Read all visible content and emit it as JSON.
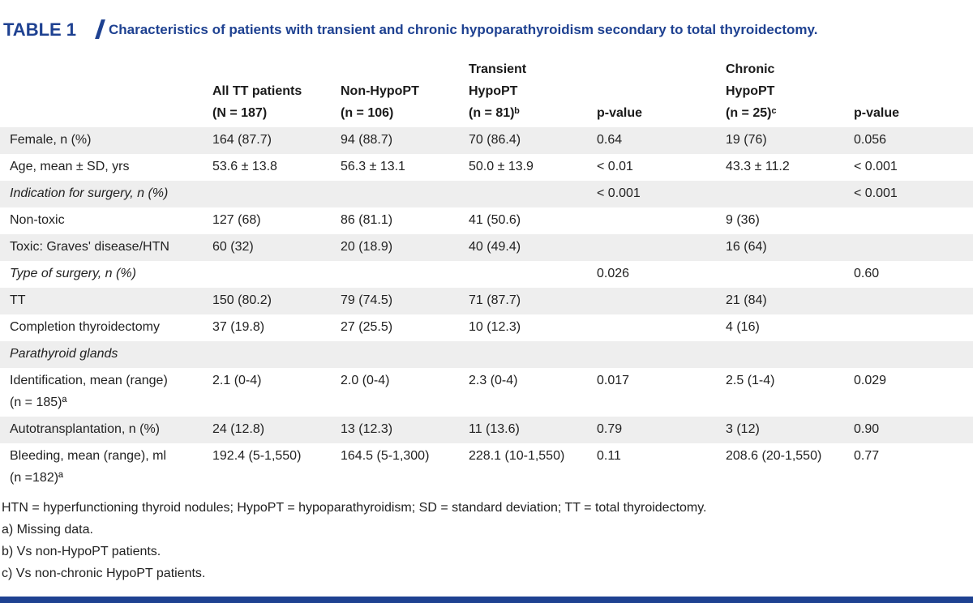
{
  "title": {
    "label": "TABLE 1",
    "text": "Characteristics of patients with transient and chronic hypoparathyroidism secondary to total thyroidectomy."
  },
  "table": {
    "columns": [
      [
        "All TT patients",
        "(N = 187)"
      ],
      [
        "Non-HypoPT",
        "(n = 106)"
      ],
      [
        "Transient",
        "HypoPT",
        "(n = 81)ᵇ"
      ],
      [
        "p-value"
      ],
      [
        "Chronic",
        "HypoPT",
        "(n = 25)ᶜ"
      ],
      [
        "p-value"
      ]
    ],
    "rows": [
      {
        "label": [
          "Female, n (%)"
        ],
        "cells": [
          "164 (87.7)",
          "94 (88.7)",
          "70 (86.4)",
          "0.64",
          "19 (76)",
          "0.056"
        ]
      },
      {
        "label": [
          "Age, mean ± SD, yrs"
        ],
        "cells": [
          "53.6 ± 13.8",
          "56.3 ± 13.1",
          "50.0 ± 13.9",
          "< 0.01",
          "43.3 ± 11.2",
          "< 0.001"
        ]
      },
      {
        "label": [
          "Indication for surgery, n (%)"
        ],
        "section": true,
        "cells": [
          null,
          null,
          null,
          "< 0.001",
          null,
          "< 0.001"
        ]
      },
      {
        "label": [
          "Non-toxic"
        ],
        "cells": [
          "127 (68)",
          "86 (81.1)",
          "41 (50.6)",
          null,
          "9 (36)",
          null
        ]
      },
      {
        "label": [
          "Toxic: Graves' disease/HTN"
        ],
        "cells": [
          "60 (32)",
          "20 (18.9)",
          "40 (49.4)",
          null,
          "16 (64)",
          null
        ]
      },
      {
        "label": [
          "Type of surgery, n (%)"
        ],
        "section": true,
        "cells": [
          null,
          null,
          null,
          "0.026",
          null,
          "0.60"
        ]
      },
      {
        "label": [
          "TT"
        ],
        "cells": [
          "150 (80.2)",
          "79 (74.5)",
          "71 (87.7)",
          null,
          "21 (84)",
          null
        ]
      },
      {
        "label": [
          "Completion thyroidectomy"
        ],
        "cells": [
          "37 (19.8)",
          "27 (25.5)",
          "10 (12.3)",
          null,
          "4 (16)",
          null
        ]
      },
      {
        "label": [
          "Parathyroid glands"
        ],
        "section": true,
        "cells": [
          null,
          null,
          null,
          null,
          null,
          null
        ]
      },
      {
        "label": [
          "Identification, mean (range)",
          "(n = 185)ª"
        ],
        "cells": [
          "2.1 (0-4)",
          "2.0 (0-4)",
          "2.3 (0-4)",
          "0.017",
          "2.5 (1-4)",
          "0.029"
        ]
      },
      {
        "label": [
          "Autotransplantation, n (%)"
        ],
        "cells": [
          "24 (12.8)",
          "13 (12.3)",
          "11 (13.6)",
          "0.79",
          "3 (12)",
          "0.90"
        ]
      },
      {
        "label": [
          "Bleeding, mean (range), ml",
          "(n =182)ª"
        ],
        "cells": [
          "192.4 (5-1,550)",
          "164.5 (5-1,300)",
          "228.1 (10-1,550)",
          "0.11",
          "208.6 (20-1,550)",
          "0.77"
        ]
      }
    ]
  },
  "footnotes": [
    "HTN = hyperfunctioning thyroid nodules; HypoPT = hypoparathyroidism; SD = standard deviation; TT = total thyroidectomy.",
    "a) Missing data.",
    "b) Vs non-HypoPT patients.",
    "c) Vs non-chronic HypoPT patients."
  ]
}
